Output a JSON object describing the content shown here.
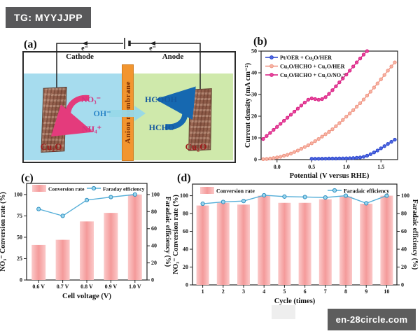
{
  "badges": {
    "top_left": "TG: MYYJJPP",
    "bottom_right": "en-28circle.com"
  },
  "panel_a": {
    "label": "(a)",
    "cathode": "Cathode",
    "anode": "Anode",
    "electron_left": "e⁻",
    "electron_right": "e⁻",
    "membrane_label": "Anion membrane",
    "cathode_electrode_label": "Cu₂O",
    "anode_electrode_label": "Cu₂O",
    "nitrate": "NO₃⁻",
    "ammonium": "NH₄⁺",
    "hydroxide": "OH⁻",
    "formic_acid": "HCOOH",
    "formaldehyde": "HCHO",
    "colors": {
      "catholyte": "#a6dcee",
      "anolyte": "#cfe9ab",
      "membrane": "#f2952f",
      "membrane_text": "#7c2d00",
      "nitrogen_species": "#d6317e",
      "hydroxide_text": "#2b86c8",
      "carbon_species": "#15589e",
      "cu2o_text": "#9e1b1b",
      "pink_arrow": "#e43b7c",
      "blue_arrow": "#1668b0",
      "oh_arrow": "#97d8e8"
    }
  },
  "chart_data": [
    {
      "panel_label": "(b)",
      "type": "line",
      "xlabel": "Potential (V versus RHE)",
      "ylabel": "Current density (mA cm⁻²)",
      "xlim": [
        -0.23,
        1.74
      ],
      "ylim": [
        0,
        50
      ],
      "xticks": [
        "0.0",
        "0.5",
        "1.0",
        "1.5"
      ],
      "yticks": [
        0,
        10,
        20,
        30,
        40,
        50
      ],
      "legend_position": "top-left",
      "series": [
        {
          "name": "Pt/OER + Cu₂O/HER",
          "color": "#2742cc",
          "marker_fill": "#4d66e0",
          "x": [
            0.5,
            0.55,
            0.6,
            0.65,
            0.7,
            0.75,
            0.8,
            0.85,
            0.9,
            0.95,
            1.0,
            1.05,
            1.1,
            1.15,
            1.2,
            1.25,
            1.3,
            1.35,
            1.4,
            1.45,
            1.5,
            1.55,
            1.6,
            1.65,
            1.7
          ],
          "y": [
            0.4,
            0.4,
            0.4,
            0.45,
            0.45,
            0.5,
            0.5,
            0.5,
            0.55,
            0.55,
            0.6,
            0.65,
            0.7,
            0.85,
            1.0,
            1.3,
            1.8,
            2.5,
            3.3,
            4.2,
            5.2,
            6.2,
            7.2,
            8.2,
            9.2
          ]
        },
        {
          "name": "Cu₂O/HCHO + Cu₂O/HER",
          "color": "#ef8f7d",
          "marker_fill": "#f6b4a4",
          "x": [
            -0.2,
            -0.15,
            -0.1,
            -0.05,
            0.0,
            0.05,
            0.1,
            0.15,
            0.2,
            0.25,
            0.3,
            0.35,
            0.4,
            0.45,
            0.5,
            0.55,
            0.6,
            0.65,
            0.7,
            0.75,
            0.8,
            0.85,
            0.9,
            0.95,
            1.0,
            1.05,
            1.1,
            1.15,
            1.2,
            1.25,
            1.3,
            1.35,
            1.4,
            1.45,
            1.5,
            1.55,
            1.6,
            1.65,
            1.7
          ],
          "y": [
            0.2,
            0.3,
            0.5,
            0.7,
            1.0,
            1.3,
            1.8,
            2.2,
            2.8,
            3.5,
            4.2,
            5.0,
            5.8,
            6.6,
            7.5,
            8.5,
            9.5,
            10.6,
            11.7,
            12.8,
            14.0,
            15.4,
            16.8,
            18.3,
            19.8,
            21.3,
            22.8,
            24.4,
            26.0,
            27.7,
            29.5,
            31.3,
            33.2,
            35.1,
            37.0,
            39.0,
            41.0,
            42.9,
            44.8
          ]
        },
        {
          "name": "Cu₂O/HCHO + Cu₂O/NO₃⁻",
          "color": "#d6187e",
          "marker_fill": "#e8459c",
          "x": [
            -0.2,
            -0.15,
            -0.1,
            -0.05,
            0.0,
            0.05,
            0.1,
            0.15,
            0.2,
            0.25,
            0.3,
            0.35,
            0.4,
            0.45,
            0.5,
            0.55,
            0.6,
            0.65,
            0.7,
            0.75,
            0.8,
            0.85,
            0.9,
            0.95,
            1.0,
            1.05,
            1.1,
            1.15,
            1.2,
            1.25,
            1.3
          ],
          "y": [
            9.5,
            10.9,
            12.3,
            13.7,
            15.1,
            16.5,
            17.9,
            19.3,
            20.7,
            22.1,
            23.5,
            24.9,
            26.3,
            27.6,
            28.2,
            27.9,
            27.6,
            27.9,
            28.8,
            30.3,
            32.0,
            33.8,
            35.6,
            37.4,
            39.2,
            41.0,
            42.9,
            44.8,
            46.6,
            48.4,
            50.0
          ]
        }
      ]
    },
    {
      "panel_label": "(c)",
      "type": "bar-line",
      "categories": [
        "0.6 V",
        "0.7 V",
        "0.8 V",
        "0.9 V",
        "1.0 V"
      ],
      "bar_series": {
        "name": "Conversion rate",
        "color": "#f49a9a",
        "values": [
          41,
          47,
          68.5,
          78.5,
          100
        ]
      },
      "line_series": {
        "name": "Faraday efficiency",
        "color": "#55aed8",
        "marker_fill": "#9ad6ee",
        "values": [
          83,
          75,
          93.5,
          97,
          100
        ]
      },
      "xlabel": "Cell voltage (V)",
      "ylabel_left": "NO₃⁻ Conversion rate (%)",
      "ylabel_right": "Faradaic efficiency (%)",
      "yticks_left": [
        0,
        25,
        50,
        75,
        100
      ],
      "yticks_right": [
        0,
        20,
        40,
        60,
        80,
        100
      ],
      "ylim": [
        0,
        113
      ]
    },
    {
      "panel_label": "(d)",
      "type": "bar-line",
      "categories": [
        "1",
        "2",
        "3",
        "4",
        "5",
        "6",
        "7",
        "8",
        "9",
        "10"
      ],
      "bar_series": {
        "name": "Conversion rate",
        "color": "#f49a9a",
        "values": [
          89,
          92,
          90,
          100,
          92,
          92,
          96,
          99,
          91,
          100
        ]
      },
      "line_series": {
        "name": "Faradaic efficiency",
        "color": "#55aed8",
        "marker_fill": "#9ad6ee",
        "values": [
          91,
          93,
          94,
          100.5,
          99,
          98.5,
          98,
          100,
          91.5,
          100
        ]
      },
      "xlabel": "Cycle (times)",
      "ylabel_left": "NO₃⁻ Conversion rate (%)",
      "ylabel_right": "Faradaic efficiency (%)",
      "yticks_left": [
        0,
        20,
        40,
        60,
        80,
        100
      ],
      "yticks_right": [
        0,
        20,
        40,
        60,
        80,
        100
      ],
      "ylim": [
        0,
        113
      ]
    }
  ]
}
